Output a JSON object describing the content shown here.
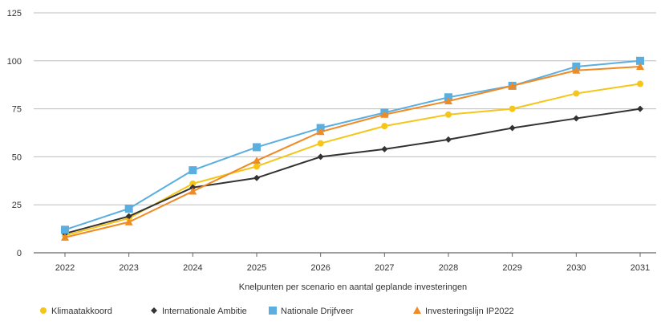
{
  "chart_data": {
    "type": "line",
    "title": "",
    "xlabel": "Knelpunten per scenario en aantal geplande investeringen",
    "ylabel": "",
    "x": [
      "2022",
      "2023",
      "2024",
      "2025",
      "2026",
      "2027",
      "2028",
      "2029",
      "2030",
      "2031"
    ],
    "ylim": [
      0,
      125
    ],
    "yticks": [
      0,
      25,
      50,
      75,
      100,
      125
    ],
    "grid": true,
    "legend_position": "bottom",
    "series": [
      {
        "name": "Klimaatakkoord",
        "color": "#f5c518",
        "marker": "circle",
        "values": [
          9,
          18,
          36,
          45,
          57,
          66,
          72,
          75,
          83,
          88
        ]
      },
      {
        "name": "Internationale Ambitie",
        "color": "#333333",
        "marker": "diamond",
        "values": [
          10,
          19,
          34,
          39,
          50,
          54,
          59,
          65,
          70,
          75
        ]
      },
      {
        "name": "Nationale Drijfveer",
        "color": "#5aaee0",
        "marker": "square",
        "values": [
          12,
          23,
          43,
          55,
          65,
          73,
          81,
          87,
          97,
          100
        ]
      },
      {
        "name": "Investeringslijn IP2022",
        "color": "#f08a24",
        "marker": "triangle",
        "values": [
          8,
          16,
          32,
          48,
          63,
          72,
          79,
          87,
          95,
          97
        ]
      }
    ]
  }
}
